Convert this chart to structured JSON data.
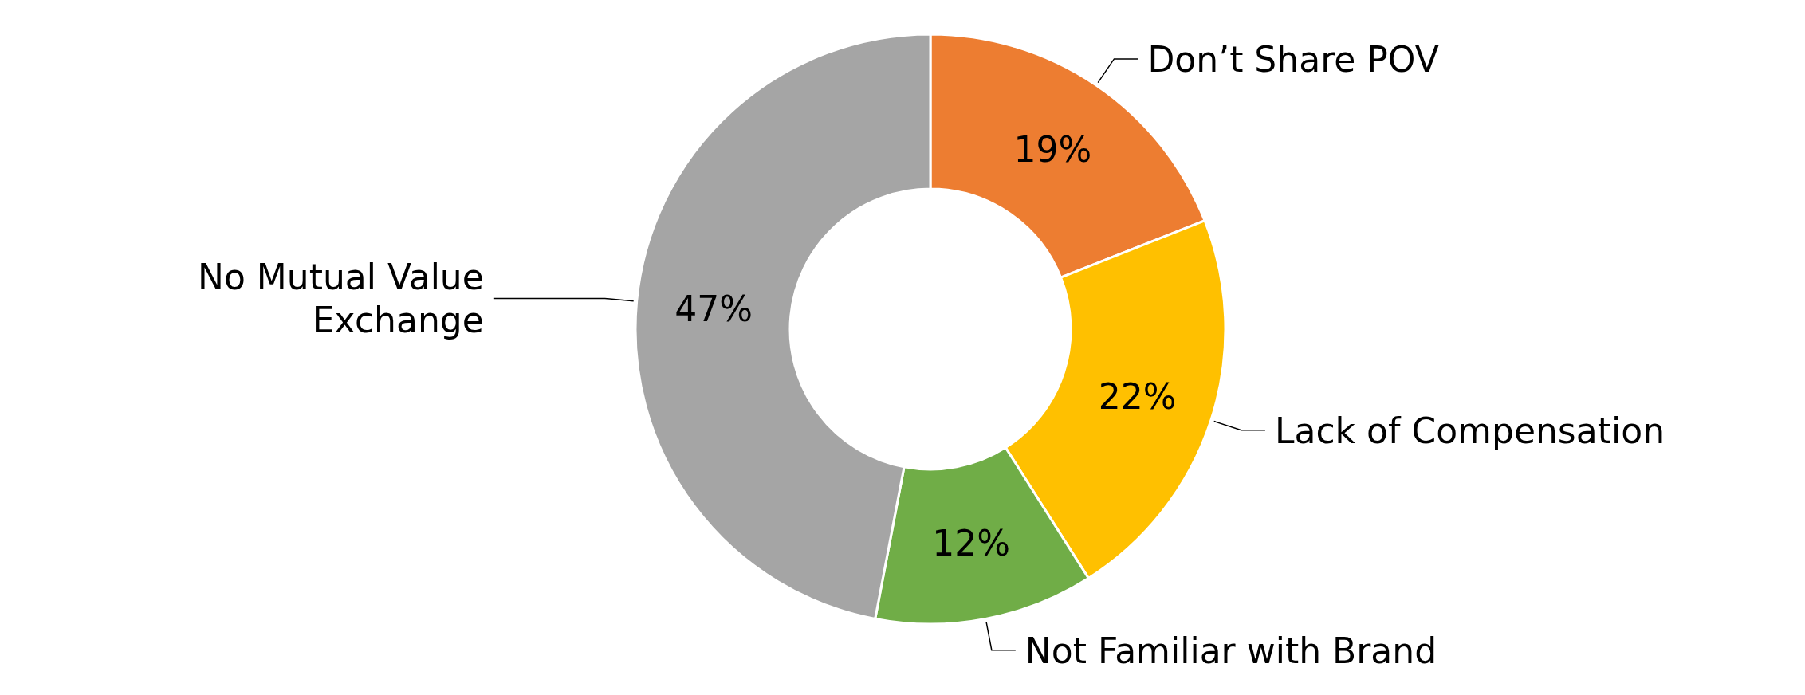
{
  "chart_data": {
    "type": "donut",
    "categories": [
      "Don’t Share POV",
      "Lack of Compensation",
      "Not Familiar with Brand",
      "No Mutual Value Exchange"
    ],
    "values": [
      19,
      22,
      12,
      47
    ],
    "colors": [
      "#ed7d31",
      "#ffc000",
      "#70ad47",
      "#a5a5a5"
    ],
    "value_labels": [
      "19%",
      "22%",
      "12%",
      "47%"
    ]
  }
}
